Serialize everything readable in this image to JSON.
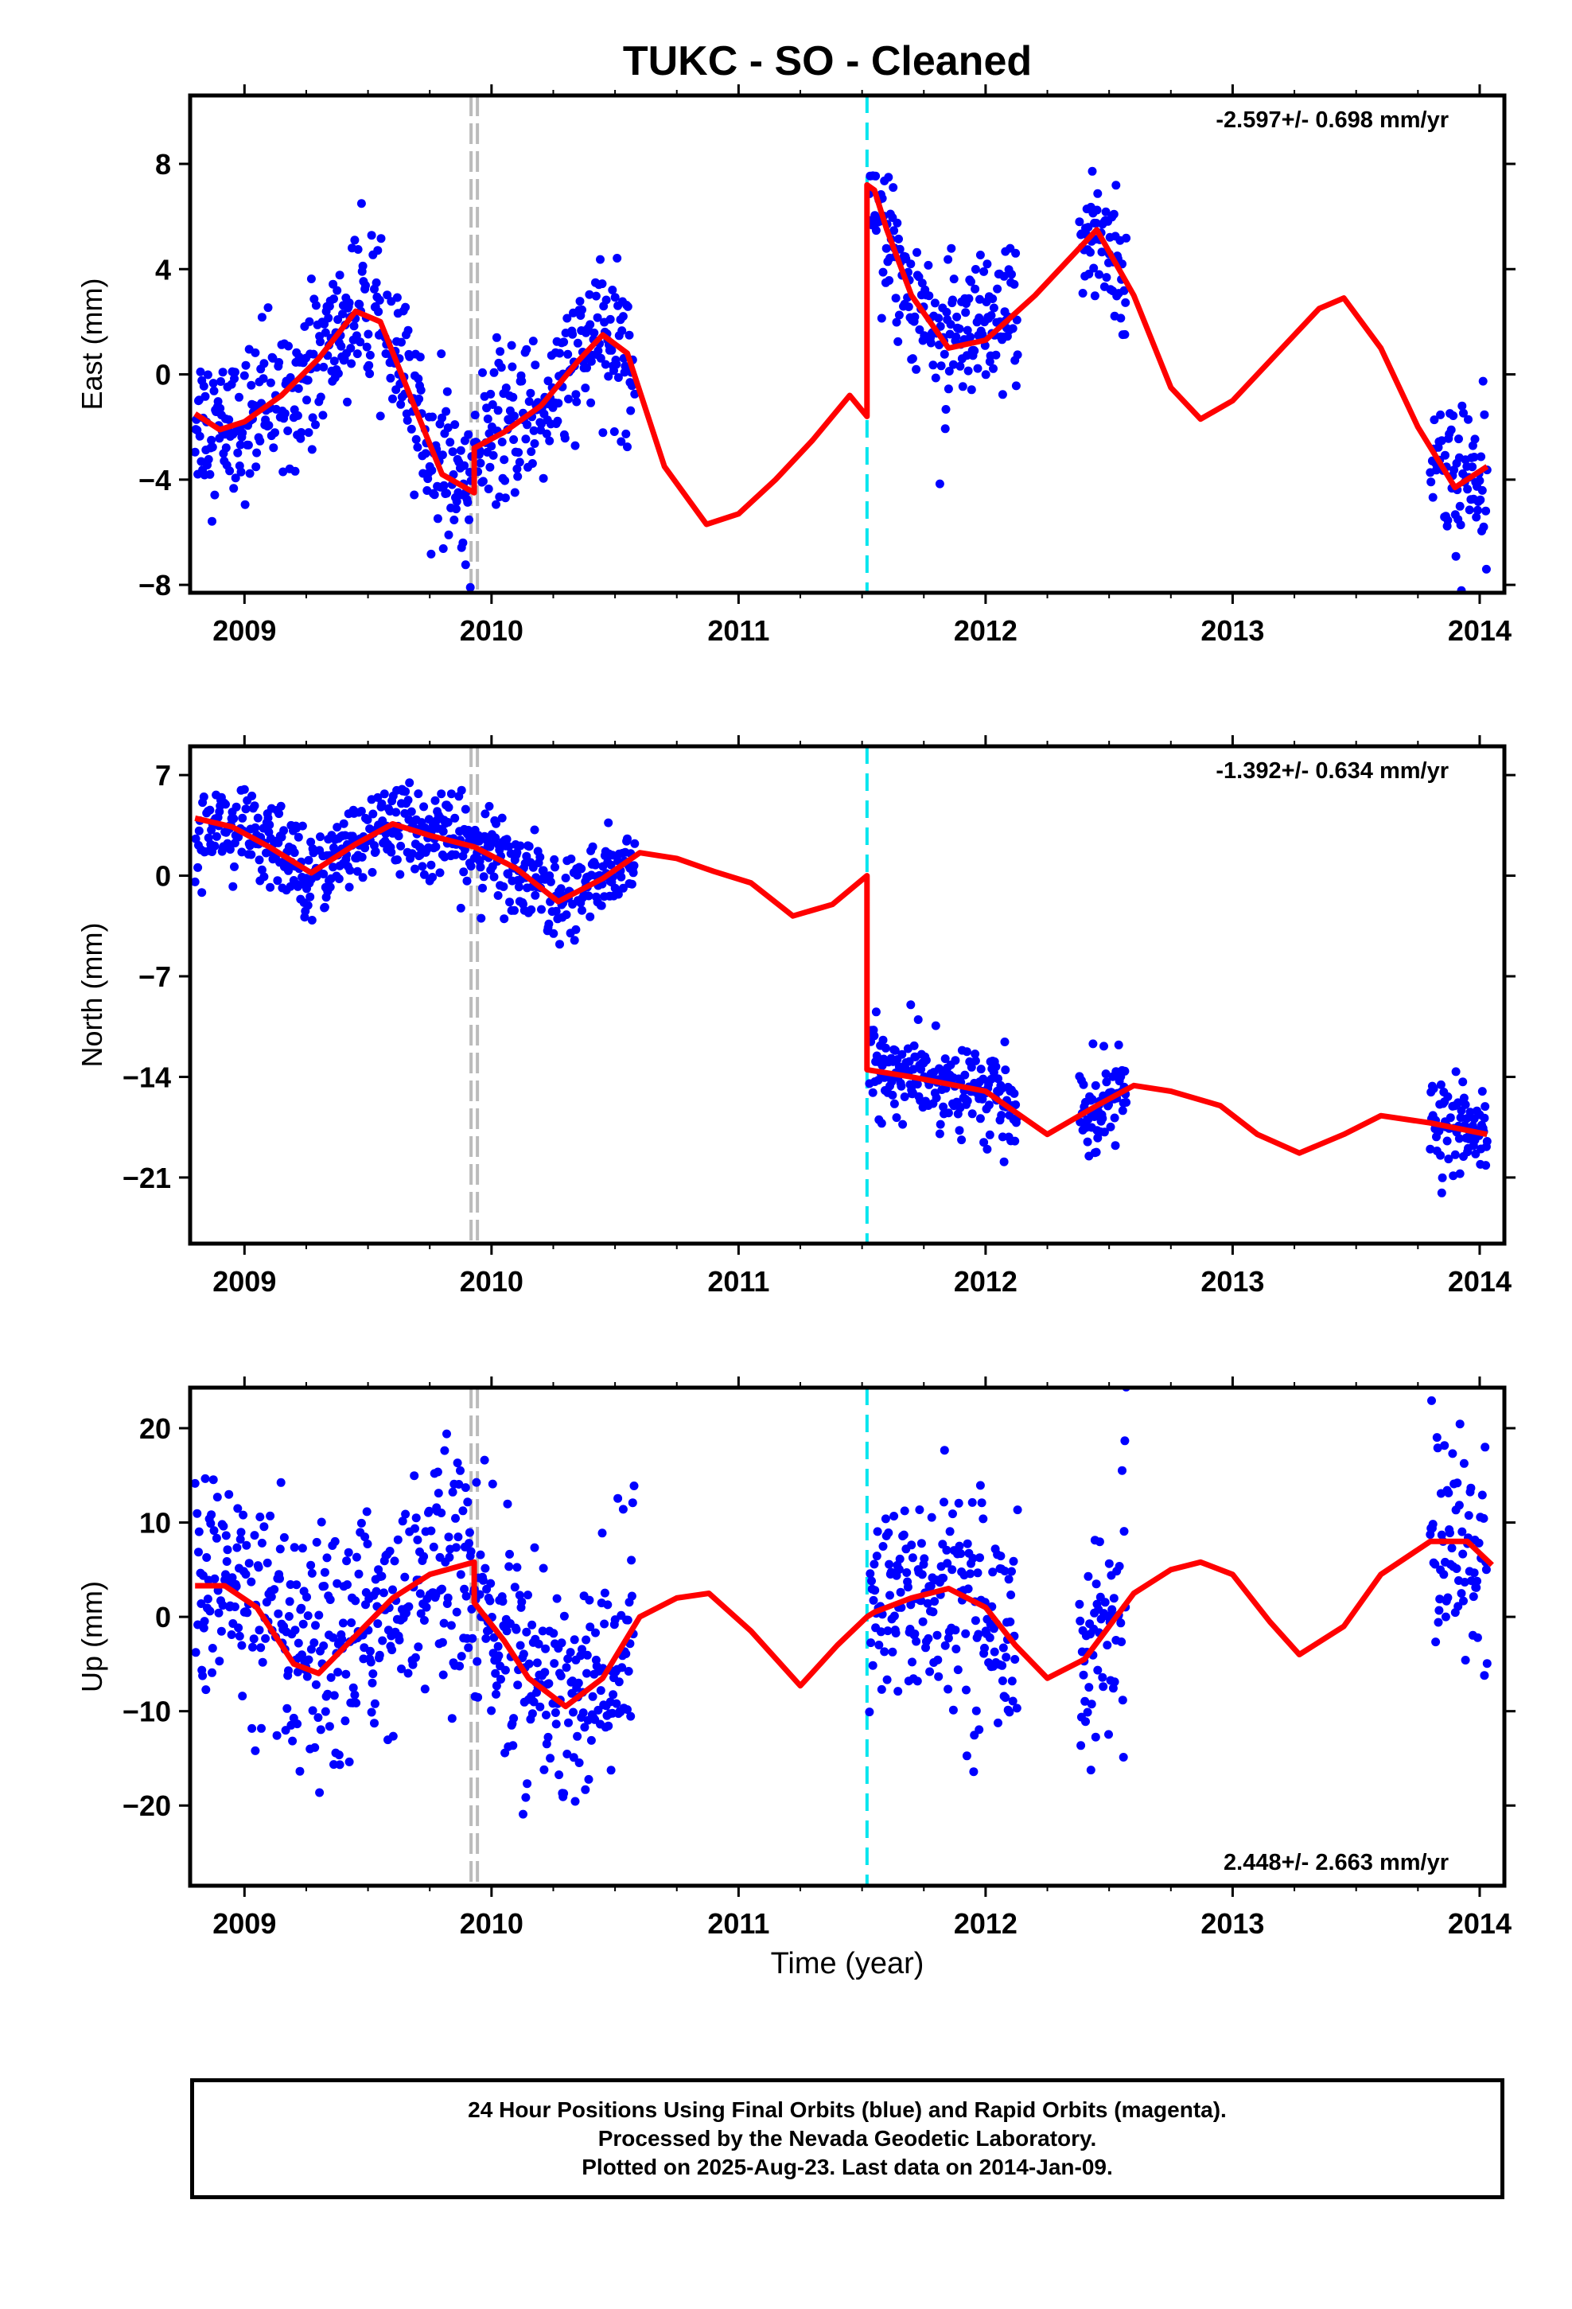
{
  "title": "TUKC  - SO - Cleaned",
  "colors": {
    "final_orbits": "#0000ff",
    "model": "#ff0000",
    "antenna_change": "#bbbbbb",
    "earthquake": "#00e5ee"
  },
  "events": {
    "gray_line": 2009.93,
    "cyan_line": 2011.52
  },
  "x_axis": {
    "label": "Time (year)",
    "range": [
      2008.78,
      2014.1
    ],
    "ticks": [
      "2009",
      "2010",
      "2011",
      "2012",
      "2013",
      "2014"
    ]
  },
  "chart_data": [
    {
      "type": "scatter",
      "ylabel": "East (mm)",
      "ylim": [
        -8.3,
        10.6
      ],
      "yticks": [
        8,
        4,
        0,
        -4,
        -8
      ],
      "rate": "-2.597+/- 0.698 mm/yr",
      "rate_position": "top-right",
      "series": [
        {
          "name": "",
          "kind": "points",
          "x_ranges": [
            [
              2008.8,
              2010.58
            ],
            [
              2011.53,
              2012.13
            ],
            [
              2012.38,
              2012.57
            ],
            [
              2013.8,
              2014.03
            ]
          ]
        },
        {
          "name": "",
          "kind": "model",
          "x": [
            2008.8,
            2008.9,
            2009.0,
            2009.15,
            2009.3,
            2009.45,
            2009.55,
            2009.7,
            2009.8,
            2009.93,
            2009.93,
            2010.05,
            2010.2,
            2010.35,
            2010.45,
            2010.55,
            2010.7,
            2010.87,
            2011.0,
            2011.15,
            2011.3,
            2011.45,
            2011.52,
            2011.52,
            2011.55,
            2011.6,
            2011.7,
            2011.85,
            2012.0,
            2012.2,
            2012.45,
            2012.6,
            2012.75,
            2012.87,
            2013.0,
            2013.2,
            2013.35,
            2013.45,
            2013.6,
            2013.75,
            2013.9,
            2014.03
          ],
          "y": [
            -1.5,
            -2.1,
            -1.8,
            -0.8,
            0.6,
            2.4,
            2.0,
            -1.5,
            -3.8,
            -4.5,
            -2.8,
            -2.2,
            -1.2,
            0.5,
            1.5,
            0.8,
            -3.5,
            -5.7,
            -5.3,
            -4.0,
            -2.5,
            -0.8,
            -1.6,
            7.2,
            7.0,
            5.5,
            3.0,
            1.0,
            1.3,
            3.0,
            5.5,
            3.0,
            -0.5,
            -1.7,
            -1.0,
            1.0,
            2.5,
            2.9,
            1.0,
            -2.0,
            -4.3,
            -3.5
          ]
        }
      ]
    },
    {
      "type": "scatter",
      "ylabel": "North (mm)",
      "ylim": [
        -25.6,
        9.0
      ],
      "yticks": [
        7,
        0,
        -7,
        -14,
        -21
      ],
      "rate": "-1.392+/- 0.634 mm/yr",
      "rate_position": "top-right",
      "series": [
        {
          "name": "",
          "kind": "points",
          "x_ranges": [
            [
              2008.8,
              2010.58
            ],
            [
              2011.53,
              2012.13
            ],
            [
              2012.38,
              2012.57
            ],
            [
              2013.8,
              2014.03
            ]
          ]
        },
        {
          "name": "",
          "kind": "model",
          "x": [
            2008.8,
            2008.95,
            2009.1,
            2009.27,
            2009.45,
            2009.6,
            2009.75,
            2009.93,
            2010.1,
            2010.27,
            2010.45,
            2010.6,
            2010.75,
            2010.9,
            2011.05,
            2011.22,
            2011.38,
            2011.52,
            2011.52,
            2011.7,
            2011.85,
            2012.0,
            2012.1,
            2012.25,
            2012.45,
            2012.6,
            2012.75,
            2012.95,
            2013.1,
            2013.27,
            2013.45,
            2013.6,
            2013.8,
            2014.03
          ],
          "y": [
            4.0,
            3.4,
            2.0,
            0.2,
            2.2,
            3.6,
            2.8,
            2.0,
            0.5,
            -1.8,
            -0.2,
            1.6,
            1.2,
            0.3,
            -0.5,
            -2.8,
            -2.0,
            0.0,
            -13.5,
            -14.0,
            -14.5,
            -15.0,
            -16.2,
            -18.0,
            -16.0,
            -14.6,
            -15.0,
            -16.0,
            -18.0,
            -19.3,
            -18.0,
            -16.7,
            -17.2,
            -18.0
          ]
        }
      ]
    },
    {
      "type": "scatter",
      "ylabel": "Up (mm)",
      "ylim": [
        -28.5,
        24.3
      ],
      "yticks": [
        20,
        10,
        0,
        -10,
        -20
      ],
      "rate": "2.448+/- 2.663 mm/yr",
      "rate_position": "bottom-right",
      "series": [
        {
          "name": "",
          "kind": "points",
          "x_ranges": [
            [
              2008.8,
              2010.58
            ],
            [
              2011.53,
              2012.13
            ],
            [
              2012.38,
              2012.57
            ],
            [
              2013.8,
              2014.03
            ]
          ]
        },
        {
          "name": "",
          "kind": "model",
          "x": [
            2008.8,
            2008.92,
            2009.05,
            2009.2,
            2009.3,
            2009.45,
            2009.6,
            2009.75,
            2009.93,
            2009.93,
            2010.05,
            2010.15,
            2010.3,
            2010.45,
            2010.6,
            2010.75,
            2010.88,
            2011.05,
            2011.25,
            2011.4,
            2011.52,
            2011.55,
            2011.7,
            2011.85,
            2012.0,
            2012.12,
            2012.25,
            2012.4,
            2012.6,
            2012.75,
            2012.87,
            2013.0,
            2013.15,
            2013.27,
            2013.45,
            2013.6,
            2013.8,
            2013.95,
            2014.05
          ],
          "y": [
            3.3,
            3.3,
            1.0,
            -5.0,
            -6.0,
            -2.0,
            2.0,
            4.5,
            5.8,
            1.5,
            -2.5,
            -6.5,
            -9.5,
            -6.5,
            0.0,
            2.0,
            2.5,
            -1.5,
            -7.3,
            -3.0,
            0.0,
            0.5,
            2.0,
            3.0,
            1.0,
            -3.0,
            -6.5,
            -4.5,
            2.5,
            5.0,
            5.8,
            4.5,
            -0.5,
            -4.0,
            -1.0,
            4.5,
            8.0,
            8.0,
            5.5
          ]
        }
      ]
    }
  ],
  "footer": {
    "line1": "24 Hour Positions Using Final Orbits (blue) and Rapid Orbits (magenta).",
    "line2": "Processed by the Nevada Geodetic Laboratory.",
    "line3": "Plotted on 2025-Aug-23. Last data on 2014-Jan-09."
  }
}
